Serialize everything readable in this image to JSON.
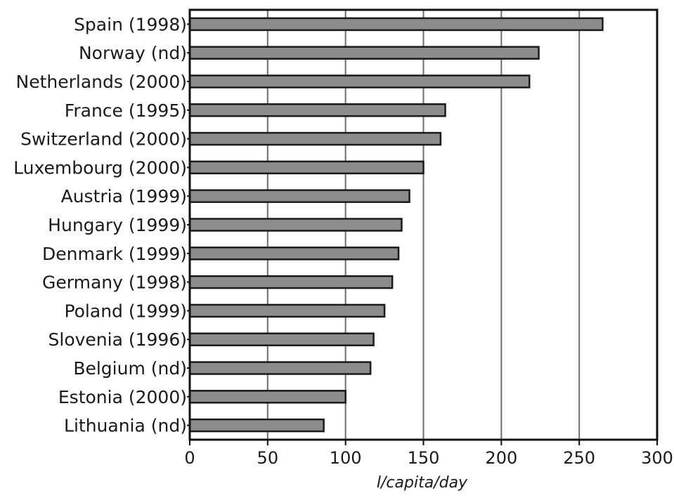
{
  "chart_data": {
    "type": "bar",
    "orientation": "horizontal",
    "title": "",
    "xlabel": "l/capita/day",
    "ylabel": "",
    "xlim": [
      0,
      300
    ],
    "xticks": [
      "0",
      "50",
      "100",
      "150",
      "200",
      "250",
      "300"
    ],
    "grid": "vertical",
    "categories": [
      "Spain (1998)",
      "Norway (nd)",
      "Netherlands (2000)",
      "France (1995)",
      "Switzerland (2000)",
      "Luxembourg (2000)",
      "Austria (1999)",
      "Hungary (1999)",
      "Denmark (1999)",
      "Germany (1998)",
      "Poland (1999)",
      "Slovenia (1996)",
      "Belgium (nd)",
      "Estonia (2000)",
      "Lithuania (nd)"
    ],
    "values": [
      265,
      224,
      218,
      164,
      161,
      150,
      141,
      136,
      134,
      130,
      125,
      118,
      116,
      100,
      86
    ],
    "colors": {
      "bar": "#8c8c8c",
      "bar_edge": "#1a1a1a",
      "grid": "#6e6e6e"
    }
  }
}
